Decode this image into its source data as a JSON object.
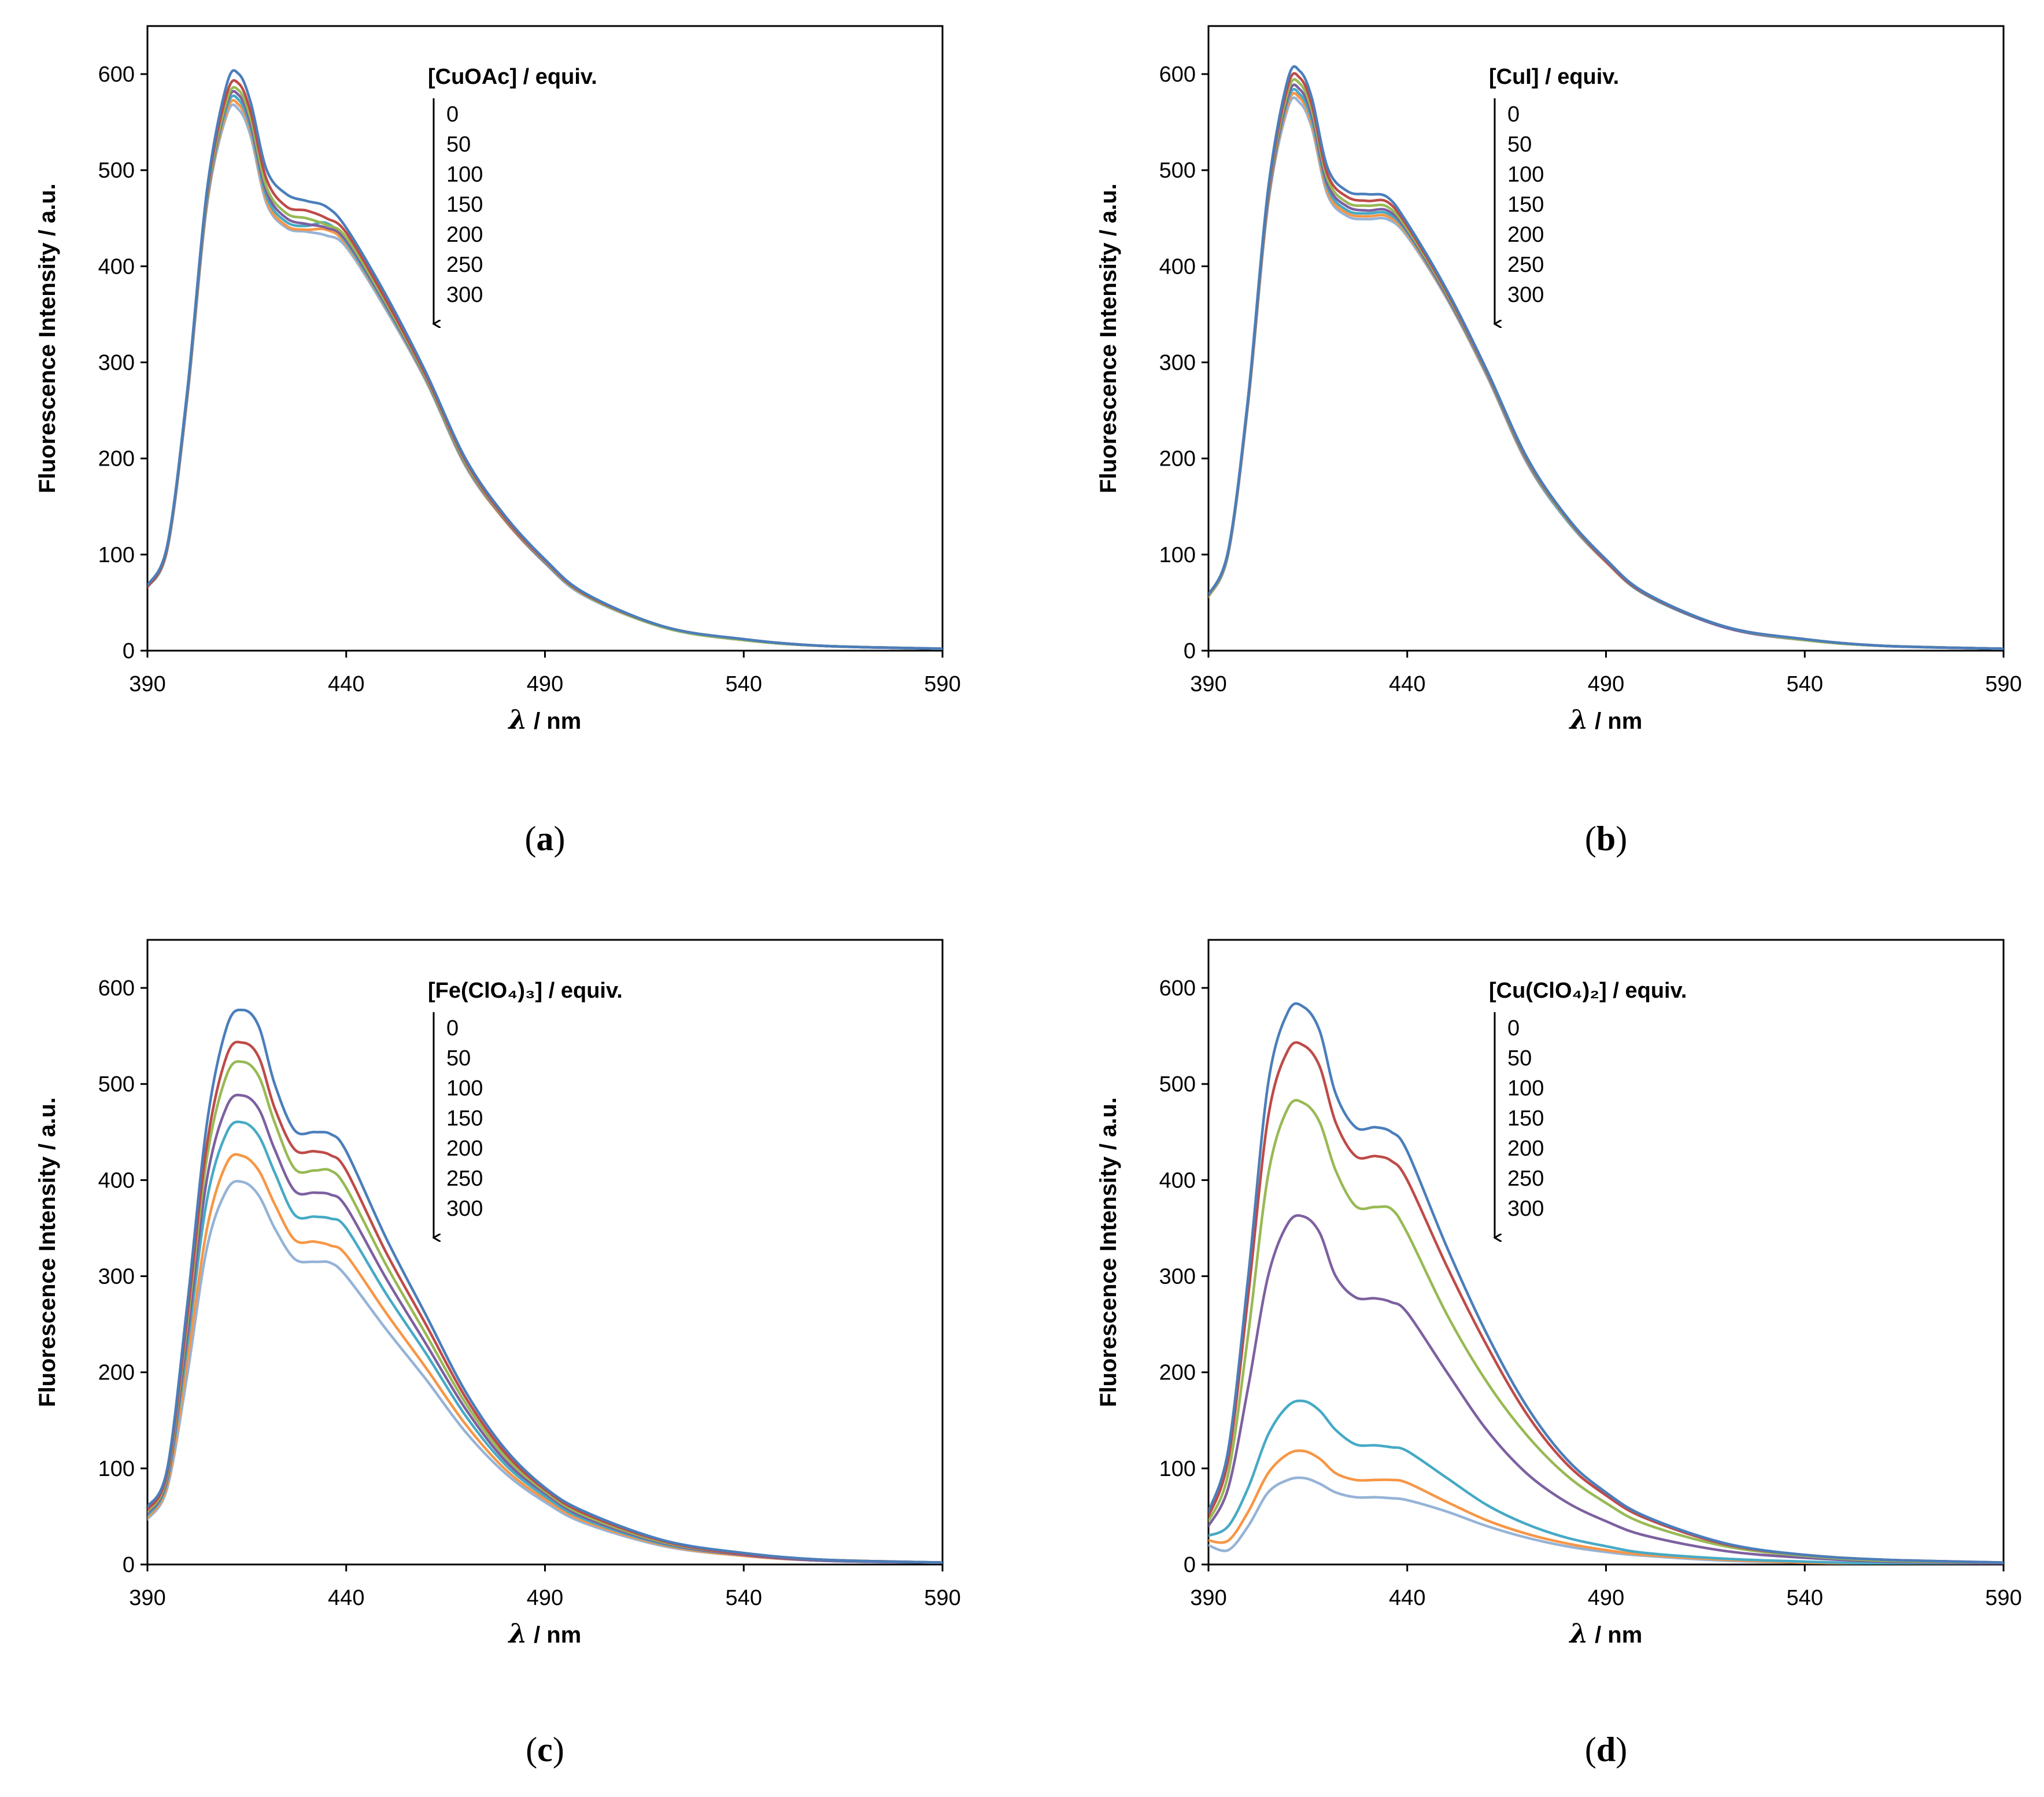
{
  "chart_data": [
    {
      "type": "line",
      "panel": "a",
      "title": "",
      "legend_title": "[CuOAc] / equiv.",
      "xlabel": "/ nm",
      "xlabel_symbol": "λ",
      "ylabel": "Fluorescence Intensity / a.u.",
      "xlim": [
        390,
        590
      ],
      "ylim": [
        0,
        650
      ],
      "xticks": [
        390,
        440,
        490,
        540,
        590
      ],
      "yticks": [
        0,
        100,
        200,
        300,
        400,
        500,
        600
      ],
      "legend_placement": "top-center with downward arrow",
      "x": [
        390,
        395,
        400,
        405,
        410,
        413,
        416,
        420,
        425,
        430,
        435,
        440,
        450,
        460,
        470,
        480,
        490,
        500,
        520,
        540,
        560,
        590
      ],
      "series": [
        {
          "name": "0",
          "color": "#4a7ebb",
          "values": [
            68,
            110,
            270,
            480,
            590,
            600,
            570,
            500,
            475,
            468,
            462,
            440,
            370,
            290,
            200,
            140,
            95,
            60,
            25,
            12,
            5,
            2
          ]
        },
        {
          "name": "50",
          "color": "#be4b48",
          "values": [
            66,
            108,
            268,
            476,
            580,
            590,
            560,
            490,
            462,
            458,
            450,
            435,
            365,
            287,
            198,
            138,
            94,
            59,
            25,
            12,
            5,
            2
          ]
        },
        {
          "name": "100",
          "color": "#98b954",
          "values": [
            66,
            107,
            266,
            472,
            573,
            583,
            553,
            482,
            455,
            450,
            443,
            430,
            362,
            285,
            196,
            137,
            93,
            58,
            24,
            11,
            5,
            2
          ]
        },
        {
          "name": "150",
          "color": "#7d60a0",
          "values": [
            66,
            107,
            265,
            470,
            570,
            578,
            548,
            477,
            450,
            444,
            440,
            427,
            360,
            284,
            195,
            136,
            92,
            58,
            24,
            11,
            5,
            2
          ]
        },
        {
          "name": "200",
          "color": "#46aac5",
          "values": [
            66,
            106,
            264,
            468,
            566,
            573,
            543,
            472,
            446,
            442,
            445,
            425,
            358,
            283,
            194,
            136,
            92,
            58,
            24,
            11,
            5,
            2
          ]
        },
        {
          "name": "250",
          "color": "#f79646",
          "values": [
            66,
            106,
            263,
            466,
            562,
            568,
            540,
            468,
            442,
            438,
            438,
            423,
            357,
            282,
            193,
            135,
            92,
            58,
            24,
            11,
            5,
            2
          ]
        },
        {
          "name": "300",
          "color": "#95b3d7",
          "values": [
            66,
            105,
            262,
            464,
            558,
            563,
            535,
            465,
            440,
            436,
            432,
            420,
            355,
            281,
            192,
            135,
            91,
            57,
            24,
            11,
            5,
            2
          ]
        }
      ]
    },
    {
      "type": "line",
      "panel": "b",
      "title": "",
      "legend_title": "[CuI] / equiv.",
      "xlabel": "/ nm",
      "xlabel_symbol": "λ",
      "ylabel": "Fluorescence Intensity / a.u.",
      "xlim": [
        390,
        590
      ],
      "ylim": [
        0,
        650
      ],
      "xticks": [
        390,
        440,
        490,
        540,
        590
      ],
      "yticks": [
        0,
        100,
        200,
        300,
        400,
        500,
        600
      ],
      "legend_placement": "top-center with downward arrow",
      "x": [
        390,
        395,
        400,
        405,
        410,
        413,
        416,
        420,
        425,
        430,
        435,
        440,
        450,
        460,
        470,
        480,
        490,
        500,
        520,
        540,
        560,
        590
      ],
      "series": [
        {
          "name": "0",
          "color": "#4a7ebb",
          "values": [
            58,
            105,
            265,
            480,
            595,
            603,
            575,
            502,
            478,
            475,
            472,
            445,
            375,
            292,
            202,
            140,
            95,
            60,
            25,
            12,
            5,
            2
          ]
        },
        {
          "name": "50",
          "color": "#be4b48",
          "values": [
            58,
            104,
            263,
            476,
            588,
            596,
            568,
            495,
            472,
            468,
            467,
            442,
            373,
            291,
            201,
            139,
            94,
            59,
            25,
            12,
            5,
            2
          ]
        },
        {
          "name": "100",
          "color": "#98b954",
          "values": [
            57,
            103,
            262,
            473,
            582,
            590,
            562,
            490,
            466,
            463,
            462,
            439,
            371,
            290,
            200,
            138,
            94,
            59,
            25,
            11,
            5,
            2
          ]
        },
        {
          "name": "150",
          "color": "#7d60a0",
          "values": [
            57,
            103,
            261,
            470,
            577,
            584,
            557,
            485,
            462,
            458,
            458,
            437,
            369,
            289,
            199,
            138,
            93,
            59,
            24,
            11,
            5,
            2
          ]
        },
        {
          "name": "200",
          "color": "#46aac5",
          "values": [
            57,
            102,
            260,
            468,
            573,
            579,
            552,
            481,
            458,
            455,
            455,
            435,
            368,
            288,
            198,
            137,
            93,
            58,
            24,
            11,
            5,
            2
          ]
        },
        {
          "name": "250",
          "color": "#f79646",
          "values": [
            56,
            102,
            259,
            466,
            569,
            575,
            548,
            477,
            455,
            452,
            452,
            433,
            367,
            287,
            197,
            137,
            92,
            58,
            24,
            11,
            5,
            2
          ]
        },
        {
          "name": "300",
          "color": "#95b3d7",
          "values": [
            56,
            101,
            258,
            464,
            565,
            570,
            544,
            474,
            452,
            449,
            449,
            431,
            366,
            286,
            196,
            136,
            92,
            58,
            24,
            11,
            5,
            2
          ]
        }
      ]
    },
    {
      "type": "line",
      "panel": "c",
      "title": "",
      "legend_title": "[Fe(ClO₄)₃] / equiv.",
      "xlabel": "/ nm",
      "xlabel_symbol": "λ",
      "ylabel": "Fluorescence Intensity / a.u.",
      "xlim": [
        390,
        590
      ],
      "ylim": [
        0,
        650
      ],
      "xticks": [
        390,
        440,
        490,
        540,
        590
      ],
      "yticks": [
        0,
        100,
        200,
        300,
        400,
        500,
        600
      ],
      "legend_placement": "top-center with downward arrow",
      "x": [
        390,
        395,
        400,
        405,
        410,
        414,
        418,
        422,
        427,
        432,
        436,
        440,
        450,
        460,
        470,
        480,
        490,
        500,
        520,
        540,
        560,
        590
      ],
      "series": [
        {
          "name": "0",
          "color": "#4a7ebb",
          "values": [
            60,
            100,
            270,
            460,
            560,
            577,
            560,
            500,
            452,
            450,
            448,
            430,
            340,
            260,
            180,
            120,
            80,
            55,
            25,
            12,
            5,
            2
          ]
        },
        {
          "name": "50",
          "color": "#be4b48",
          "values": [
            57,
            96,
            258,
            438,
            530,
            543,
            528,
            475,
            432,
            430,
            426,
            410,
            325,
            250,
            174,
            116,
            78,
            53,
            24,
            11,
            5,
            2
          ]
        },
        {
          "name": "100",
          "color": "#98b954",
          "values": [
            55,
            93,
            250,
            424,
            510,
            523,
            508,
            460,
            412,
            410,
            410,
            392,
            312,
            240,
            168,
            112,
            76,
            51,
            23,
            11,
            5,
            2
          ]
        },
        {
          "name": "150",
          "color": "#7d60a0",
          "values": [
            53,
            90,
            238,
            402,
            477,
            488,
            474,
            432,
            389,
            387,
            385,
            372,
            298,
            230,
            162,
            108,
            74,
            49,
            22,
            10,
            4,
            2
          ]
        },
        {
          "name": "200",
          "color": "#46aac5",
          "values": [
            51,
            87,
            227,
            380,
            450,
            460,
            446,
            408,
            364,
            362,
            360,
            350,
            282,
            220,
            155,
            104,
            71,
            47,
            21,
            10,
            4,
            2
          ]
        },
        {
          "name": "250",
          "color": "#f79646",
          "values": [
            49,
            83,
            210,
            350,
            418,
            425,
            410,
            375,
            338,
            336,
            332,
            322,
            262,
            205,
            146,
            99,
            68,
            45,
            20,
            9,
            4,
            2
          ]
        },
        {
          "name": "300",
          "color": "#95b3d7",
          "values": [
            47,
            80,
            197,
            330,
            390,
            398,
            384,
            350,
            318,
            315,
            314,
            300,
            245,
            193,
            138,
            95,
            65,
            43,
            19,
            9,
            4,
            2
          ]
        }
      ]
    },
    {
      "type": "line",
      "panel": "d",
      "title": "",
      "legend_title": "[Cu(ClO₄)₂] / equiv.",
      "xlabel": "/ nm",
      "xlabel_symbol": "λ",
      "ylabel": "Fluorescence Intensity / a.u.",
      "xlim": [
        390,
        590
      ],
      "ylim": [
        0,
        650
      ],
      "xticks": [
        390,
        440,
        490,
        540,
        590
      ],
      "yticks": [
        0,
        100,
        200,
        300,
        400,
        500,
        600
      ],
      "legend_placement": "top-center with downward arrow",
      "x": [
        390,
        395,
        400,
        405,
        410,
        414,
        418,
        422,
        427,
        432,
        436,
        440,
        450,
        460,
        470,
        480,
        490,
        500,
        520,
        540,
        560,
        590
      ],
      "series": [
        {
          "name": "0",
          "color": "#4a7ebb",
          "values": [
            55,
            120,
            300,
            500,
            575,
            580,
            555,
            490,
            455,
            455,
            450,
            430,
            330,
            240,
            165,
            110,
            75,
            50,
            22,
            10,
            5,
            2
          ]
        },
        {
          "name": "50",
          "color": "#be4b48",
          "values": [
            50,
            110,
            280,
            465,
            535,
            540,
            518,
            460,
            425,
            425,
            420,
            400,
            310,
            228,
            157,
            105,
            72,
            48,
            21,
            10,
            5,
            2
          ]
        },
        {
          "name": "100",
          "color": "#98b954",
          "values": [
            45,
            95,
            240,
            405,
            475,
            480,
            460,
            410,
            373,
            372,
            370,
            345,
            260,
            190,
            135,
            93,
            64,
            42,
            19,
            9,
            4,
            2
          ]
        },
        {
          "name": "150",
          "color": "#7d60a0",
          "values": [
            40,
            80,
            185,
            300,
            355,
            362,
            345,
            300,
            278,
            277,
            273,
            262,
            200,
            140,
            95,
            65,
            45,
            30,
            14,
            7,
            3,
            1
          ]
        },
        {
          "name": "200",
          "color": "#46aac5",
          "values": [
            30,
            40,
            80,
            135,
            165,
            170,
            160,
            140,
            125,
            124,
            122,
            118,
            90,
            62,
            42,
            28,
            19,
            12,
            6,
            3,
            1,
            1
          ]
        },
        {
          "name": "250",
          "color": "#f79646",
          "values": [
            25,
            25,
            55,
            95,
            115,
            118,
            110,
            95,
            88,
            88,
            88,
            85,
            65,
            46,
            32,
            22,
            15,
            10,
            5,
            2,
            1,
            1
          ]
        },
        {
          "name": "300",
          "color": "#95b3d7",
          "values": [
            20,
            15,
            40,
            75,
            88,
            90,
            84,
            75,
            70,
            70,
            69,
            67,
            55,
            40,
            28,
            19,
            13,
            9,
            4,
            2,
            1,
            1
          ]
        }
      ]
    }
  ]
}
